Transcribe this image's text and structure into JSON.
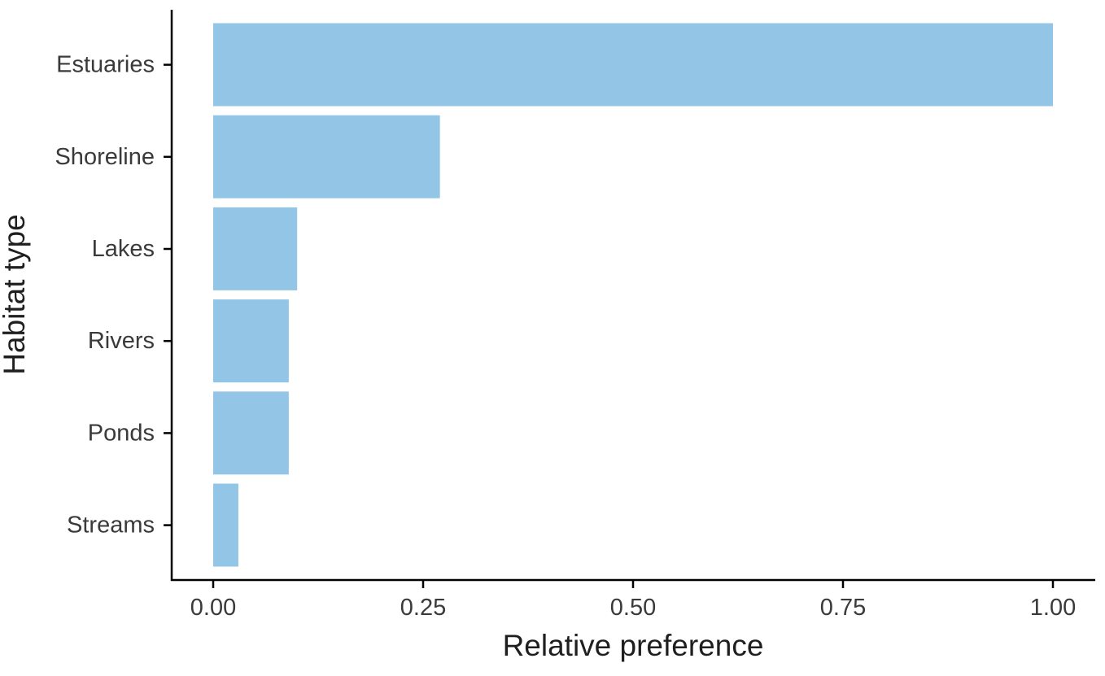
{
  "chart_data": {
    "type": "bar",
    "orientation": "horizontal",
    "categories": [
      "Estuaries",
      "Shoreline",
      "Lakes",
      "Rivers",
      "Ponds",
      "Streams"
    ],
    "values": [
      1.0,
      0.27,
      0.1,
      0.09,
      0.09,
      0.03
    ],
    "xlabel": "Relative preference",
    "ylabel": "Habitat type",
    "xlim": [
      0,
      1.0
    ],
    "xticks": [
      "0.00",
      "0.25",
      "0.50",
      "0.75",
      "1.00"
    ],
    "xtick_values": [
      0,
      0.25,
      0.5,
      0.75,
      1.0
    ],
    "grid": false,
    "legend": "none",
    "bar_color": "#93c6e6"
  }
}
